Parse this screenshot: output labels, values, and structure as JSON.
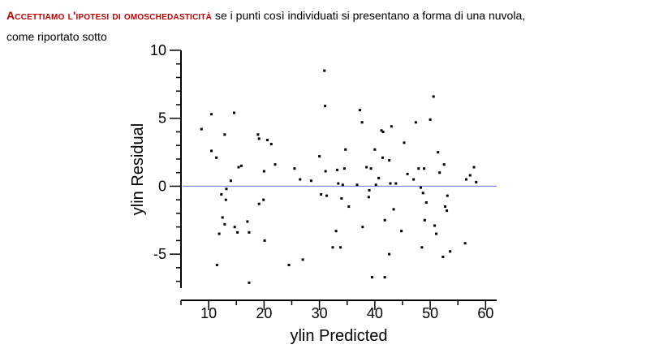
{
  "intro": {
    "lead": "Accettiamo l'ipotesi di omoschedasticità",
    "rest": " se i punti così individuati si  presentano a forma di una nuvola,",
    "line2": "come riportato sotto"
  },
  "colors": {
    "lead_text": "#c00000",
    "reference_line": "#6a6ae8",
    "points": "#000000"
  },
  "chart_data": {
    "type": "scatter",
    "xlabel": "ylin Predicted",
    "ylabel": "ylin Residual",
    "xlim": [
      5,
      62
    ],
    "ylim": [
      -7.5,
      10
    ],
    "xticks": [
      10,
      20,
      30,
      40,
      50,
      60
    ],
    "yticks": [
      10,
      5,
      0,
      -5
    ],
    "reference_line": {
      "y": 0
    },
    "grid": false,
    "points": [
      [
        8.7,
        4.2
      ],
      [
        10.5,
        5.3
      ],
      [
        10.5,
        2.6
      ],
      [
        11.4,
        2.1
      ],
      [
        11.5,
        -5.8
      ],
      [
        11.9,
        -3.5
      ],
      [
        12.3,
        -0.6
      ],
      [
        12.5,
        -2.3
      ],
      [
        12.9,
        3.8
      ],
      [
        12.9,
        -2.8
      ],
      [
        13.1,
        -1.0
      ],
      [
        13.2,
        -0.2
      ],
      [
        14.0,
        0.4
      ],
      [
        14.6,
        5.4
      ],
      [
        14.7,
        -3.0
      ],
      [
        15.2,
        -3.4
      ],
      [
        15.4,
        1.4
      ],
      [
        15.9,
        1.5
      ],
      [
        17.0,
        -2.6
      ],
      [
        17.3,
        -7.1
      ],
      [
        17.3,
        -3.4
      ],
      [
        18.9,
        3.8
      ],
      [
        19.1,
        3.5
      ],
      [
        19.1,
        -1.3
      ],
      [
        19.9,
        -1.0
      ],
      [
        20.0,
        1.1
      ],
      [
        20.1,
        -4.0
      ],
      [
        20.6,
        3.4
      ],
      [
        21.3,
        3.1
      ],
      [
        22.0,
        1.6
      ],
      [
        24.5,
        -5.8
      ],
      [
        25.5,
        1.3
      ],
      [
        26.5,
        0.5
      ],
      [
        27.0,
        -5.4
      ],
      [
        28.5,
        0.4
      ],
      [
        30.0,
        2.2
      ],
      [
        30.3,
        -0.6
      ],
      [
        30.9,
        8.5
      ],
      [
        31.0,
        5.9
      ],
      [
        31.1,
        1.1
      ],
      [
        31.3,
        -0.7
      ],
      [
        32.4,
        -4.5
      ],
      [
        33.0,
        -3.3
      ],
      [
        33.2,
        1.2
      ],
      [
        33.4,
        0.2
      ],
      [
        33.8,
        -4.5
      ],
      [
        34.0,
        -0.9
      ],
      [
        34.2,
        0.1
      ],
      [
        34.5,
        1.3
      ],
      [
        34.7,
        2.7
      ],
      [
        35.3,
        -1.5
      ],
      [
        36.8,
        0.1
      ],
      [
        37.3,
        5.6
      ],
      [
        37.7,
        4.7
      ],
      [
        37.8,
        -3.0
      ],
      [
        38.5,
        1.4
      ],
      [
        38.9,
        -0.8
      ],
      [
        39.0,
        -0.3
      ],
      [
        39.3,
        1.3
      ],
      [
        39.5,
        -6.7
      ],
      [
        40.0,
        2.7
      ],
      [
        40.2,
        0.1
      ],
      [
        40.7,
        0.6
      ],
      [
        41.2,
        4.1
      ],
      [
        41.4,
        2.1
      ],
      [
        41.5,
        4.0
      ],
      [
        41.8,
        -2.5
      ],
      [
        41.8,
        -6.7
      ],
      [
        42.6,
        1.9
      ],
      [
        42.6,
        -5.0
      ],
      [
        42.8,
        0.2
      ],
      [
        43.0,
        4.4
      ],
      [
        43.4,
        -1.7
      ],
      [
        43.8,
        0.2
      ],
      [
        44.8,
        -3.3
      ],
      [
        45.3,
        3.2
      ],
      [
        45.9,
        0.9
      ],
      [
        47.0,
        0.5
      ],
      [
        47.4,
        4.7
      ],
      [
        47.9,
        1.3
      ],
      [
        48.3,
        -0.1
      ],
      [
        48.5,
        -4.5
      ],
      [
        48.7,
        -0.5
      ],
      [
        48.9,
        1.3
      ],
      [
        49.0,
        -2.5
      ],
      [
        49.3,
        -1.2
      ],
      [
        50.0,
        4.9
      ],
      [
        50.6,
        6.6
      ],
      [
        50.8,
        -2.9
      ],
      [
        51.1,
        -3.5
      ],
      [
        51.4,
        2.5
      ],
      [
        51.7,
        1.0
      ],
      [
        52.3,
        -5.2
      ],
      [
        52.5,
        1.6
      ],
      [
        52.7,
        -1.5
      ],
      [
        53.0,
        -1.8
      ],
      [
        53.1,
        -0.7
      ],
      [
        53.6,
        -4.8
      ],
      [
        56.3,
        -4.2
      ],
      [
        56.5,
        0.5
      ],
      [
        57.2,
        0.8
      ],
      [
        57.9,
        1.4
      ],
      [
        58.3,
        0.3
      ]
    ]
  }
}
